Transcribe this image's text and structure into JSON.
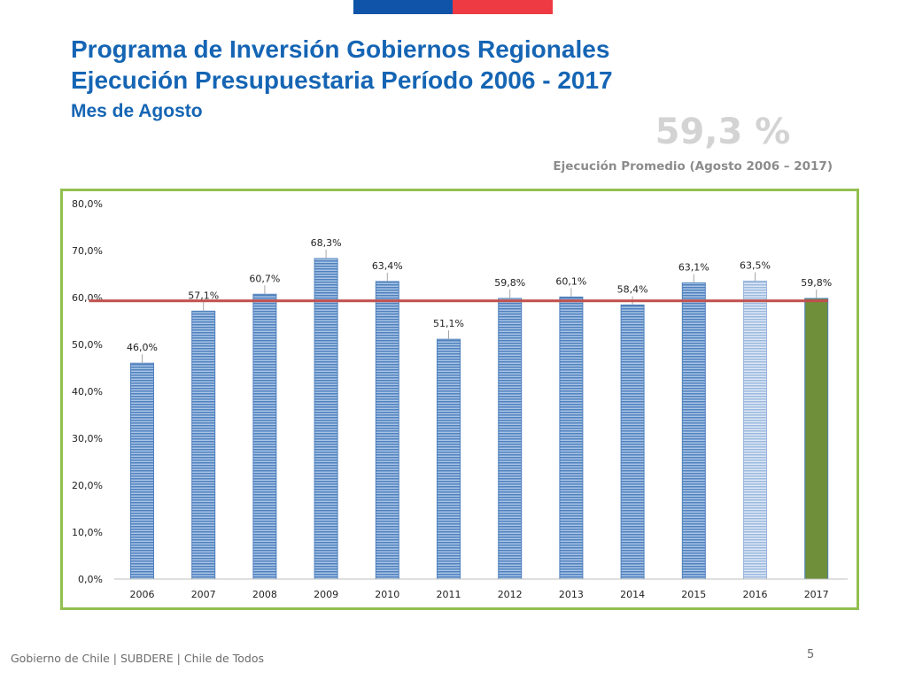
{
  "slide": {
    "title_line1": "Programa de Inversión Gobiernos Regionales",
    "title_line2": "Ejecución Presupuestaria Período 2006 - 2017",
    "subtitle": "Mes de Agosto",
    "average_value": "59,3 %",
    "average_caption": "Ejecución Promedio (Agosto 2006 – 2017)",
    "footer": "Gobierno de Chile | SUBDERE | Chile de Todos",
    "page_number": "5"
  },
  "colors": {
    "flag_blue": "#0f54a8",
    "flag_red": "#ee3a43",
    "title": "#1565b4",
    "frame": "#92c050",
    "bar_blue": "#4f81bd",
    "bar_green": "#6f8f3a",
    "average_line": "#c0504d"
  },
  "chart_data": {
    "type": "bar",
    "categories": [
      "2006",
      "2007",
      "2008",
      "2009",
      "2010",
      "2011",
      "2012",
      "2013",
      "2014",
      "2015",
      "2016",
      "2017"
    ],
    "values": [
      46.0,
      57.1,
      60.7,
      68.3,
      63.4,
      51.1,
      59.8,
      60.1,
      58.4,
      63.1,
      63.5,
      59.8
    ],
    "data_labels": [
      "46,0%",
      "57,1%",
      "60,7%",
      "68,3%",
      "63,4%",
      "51,1%",
      "59,8%",
      "60,1%",
      "58,4%",
      "63,1%",
      "63,5%",
      "59,8%"
    ],
    "highlight_category": "2017",
    "average_line": 59.3,
    "ylim": [
      0,
      80
    ],
    "yticks": [
      0,
      10,
      20,
      30,
      40,
      50,
      60,
      70,
      80
    ],
    "ytick_labels": [
      "0,0%",
      "10,0%",
      "20,0%",
      "30,0%",
      "40,0%",
      "50,0%",
      "60,0%",
      "70,0%",
      "80,0%"
    ],
    "title": "",
    "xlabel": "",
    "ylabel": "",
    "legend": "none",
    "grid": false
  }
}
